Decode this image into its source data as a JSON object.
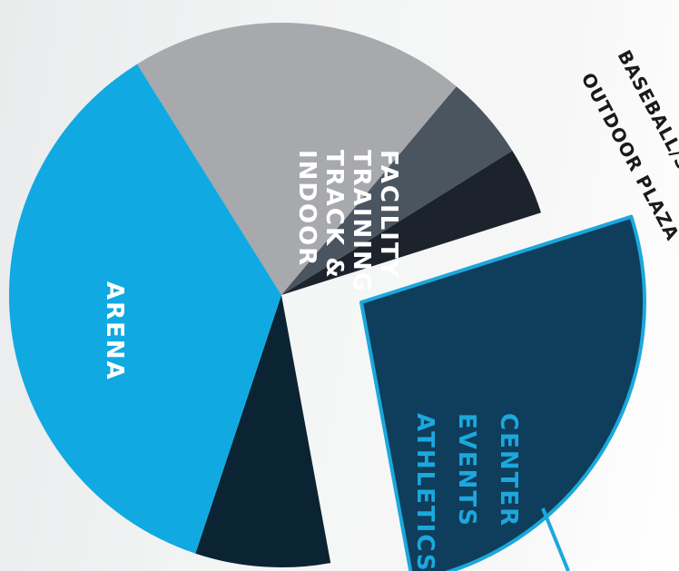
{
  "chart_data": {
    "type": "pie",
    "slices": [
      {
        "label": "INDOOR TRACK & TRAINING FACILITY",
        "label_lines": [
          "INDOOR",
          "TRACK &",
          "TRAINING",
          "FACILITY"
        ],
        "color": "#a7a9ac",
        "label_color": "#ffffff",
        "share": 0.2
      },
      {
        "label": "OUTDOOR PLAZA",
        "label_lines": [
          "OUTDOOR PLAZA"
        ],
        "color": "#4a5560",
        "label_color": "#1a1a1a",
        "share": 0.05
      },
      {
        "label": "BASEBALL/SOFTBALL",
        "label_lines": [
          "BASEBALL/SOFTBALL"
        ],
        "color": "#1c232c",
        "label_color": "#1a1a1a",
        "share": 0.04
      },
      {
        "label": "ATHLETICS EVENTS CENTER",
        "label_lines": [
          "ATHLETICS",
          "EVENTS",
          "CENTER"
        ],
        "color": "#0f3d5c",
        "label_color": "#1ba8dc",
        "outline_color": "#1ba8dc",
        "exploded": true,
        "share": 0.27
      },
      {
        "label": "",
        "label_lines": [],
        "color": "#0b2434",
        "share": 0.08
      },
      {
        "label": "ARENA",
        "label_lines": [
          "ARENA"
        ],
        "color": "#11a9e1",
        "label_color": "#ffffff",
        "share": 0.36
      }
    ]
  }
}
